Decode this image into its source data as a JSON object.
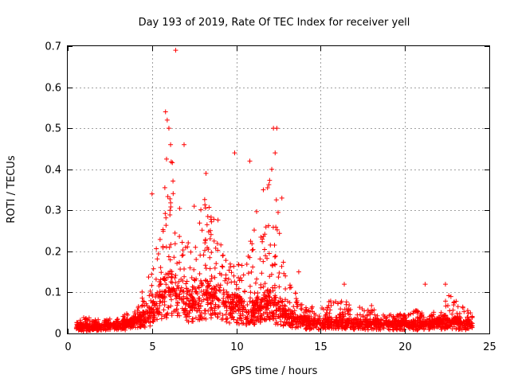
{
  "chart_data": {
    "type": "scatter",
    "title": "Day 193 of 2019, Rate Of TEC Index for receiver yell",
    "xlabel": "GPS time / hours",
    "ylabel": "ROTI / TECUs",
    "xlim": [
      0,
      25
    ],
    "ylim": [
      0,
      0.7
    ],
    "xticks": [
      0,
      5,
      10,
      15,
      20,
      25
    ],
    "yticks": [
      0,
      0.1,
      0.2,
      0.3,
      0.4,
      0.5,
      0.6,
      0.7
    ],
    "grid": true,
    "marker": "+",
    "series": [
      {
        "name": "ROTI",
        "color": "#ff0000",
        "x_range": [
          0.5,
          24
        ],
        "profile": {
          "x": [
            0.5,
            1,
            2,
            3,
            4,
            4.8,
            5.5,
            6,
            6.5,
            7,
            7.5,
            8,
            8.5,
            9,
            9.5,
            10,
            10.5,
            11,
            11.5,
            12,
            12.5,
            13,
            13.5,
            14,
            15,
            16,
            17,
            18,
            19,
            20,
            21,
            22,
            22.5,
            23,
            24
          ],
          "base": [
            0.015,
            0.015,
            0.015,
            0.018,
            0.025,
            0.04,
            0.08,
            0.1,
            0.09,
            0.07,
            0.06,
            0.08,
            0.09,
            0.08,
            0.06,
            0.06,
            0.05,
            0.05,
            0.06,
            0.07,
            0.05,
            0.04,
            0.03,
            0.025,
            0.022,
            0.025,
            0.022,
            0.022,
            0.02,
            0.02,
            0.02,
            0.022,
            0.03,
            0.025,
            0.02
          ],
          "peak": [
            0.03,
            0.04,
            0.035,
            0.04,
            0.06,
            0.15,
            0.3,
            0.5,
            0.35,
            0.25,
            0.2,
            0.35,
            0.3,
            0.28,
            0.2,
            0.2,
            0.15,
            0.3,
            0.32,
            0.45,
            0.3,
            0.15,
            0.1,
            0.07,
            0.06,
            0.1,
            0.07,
            0.07,
            0.05,
            0.05,
            0.06,
            0.05,
            0.1,
            0.08,
            0.05
          ]
        },
        "outliers": [
          {
            "x": 6.4,
            "y": 0.69
          },
          {
            "x": 5.8,
            "y": 0.54
          },
          {
            "x": 5.9,
            "y": 0.52
          },
          {
            "x": 6.0,
            "y": 0.5
          },
          {
            "x": 6.1,
            "y": 0.46
          },
          {
            "x": 6.9,
            "y": 0.46
          },
          {
            "x": 9.9,
            "y": 0.44
          },
          {
            "x": 10.8,
            "y": 0.42
          },
          {
            "x": 12.2,
            "y": 0.5
          },
          {
            "x": 12.4,
            "y": 0.5
          },
          {
            "x": 12.3,
            "y": 0.44
          },
          {
            "x": 8.2,
            "y": 0.39
          },
          {
            "x": 12.1,
            "y": 0.4
          },
          {
            "x": 5.0,
            "y": 0.34
          },
          {
            "x": 11.6,
            "y": 0.35
          },
          {
            "x": 12.7,
            "y": 0.33
          },
          {
            "x": 7.5,
            "y": 0.31
          },
          {
            "x": 13.7,
            "y": 0.15
          },
          {
            "x": 21.2,
            "y": 0.12
          },
          {
            "x": 22.4,
            "y": 0.12
          },
          {
            "x": 16.4,
            "y": 0.12
          }
        ]
      }
    ]
  }
}
